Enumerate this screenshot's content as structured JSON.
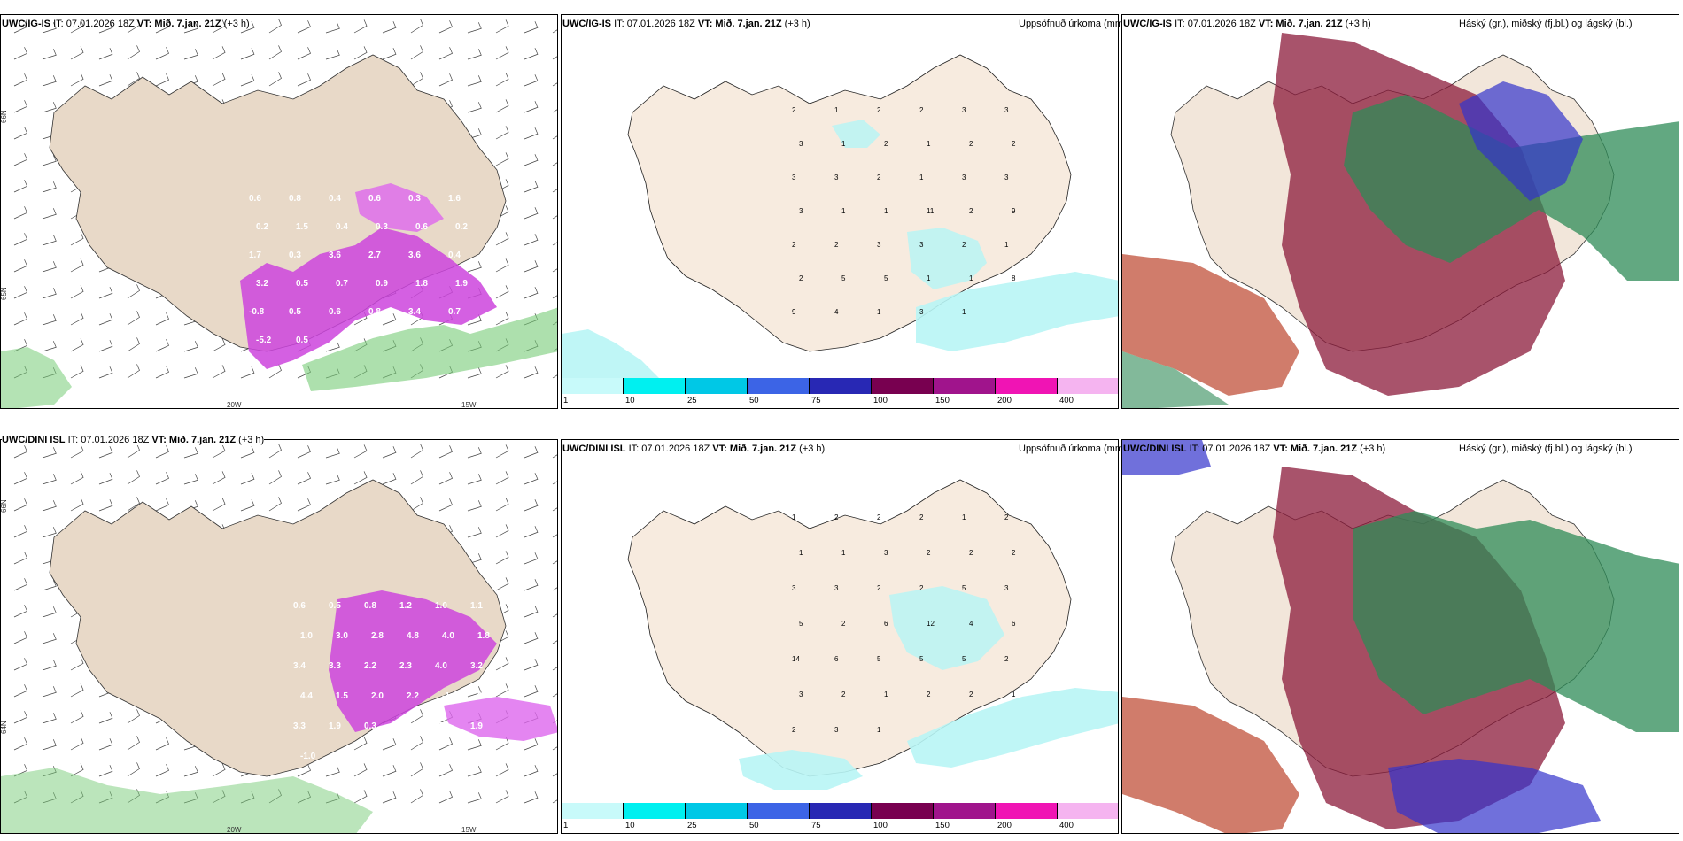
{
  "colors": {
    "land": "#f5e6da",
    "sea": "#ffffff",
    "precip_light": "#b8f5f5",
    "precip_cyan": "#00e5e5",
    "precip_magenta": "#cc33cc",
    "cloud_high": "#8b1a3a",
    "cloud_mid": "#2e8b57",
    "cloud_low": "#3333cc"
  },
  "rows": [
    {
      "model": "UWC/IG-IS",
      "it_label": "IT: 07.01.2026 18Z",
      "vt_label": "VT: Mið. 7.jan. 21Z",
      "lead": "(+3 h)",
      "wind_labels": {
        "lon1": "20W",
        "lon2": "15W",
        "lat1": "66N",
        "lat2": "65N",
        "lat3": "64N"
      },
      "wind_numbers": [
        "0.6",
        "0.8",
        "0.4",
        "0.6",
        "0.3",
        "1.6",
        "0.2",
        "1.5",
        "0.4",
        "0.3",
        "0.6",
        "0.2",
        "1.7",
        "0.3",
        "3.6",
        "2.7",
        "3.6",
        "0.4",
        "3.2",
        "0.5",
        "0.7",
        "0.9",
        "1.8",
        "1.9",
        "-0.8",
        "0.5",
        "0.6",
        "0.8",
        "3.4",
        "0.7",
        "-5.2",
        "0.5",
        "0.9"
      ],
      "precip_title": "Uppsöfnuð úrkoma (mm)",
      "precip_numbers": [
        "2",
        "1",
        "2",
        "2",
        "3",
        "3",
        "3",
        "1",
        "2",
        "1",
        "2",
        "2",
        "3",
        "3",
        "2",
        "1",
        "3",
        "3",
        "3",
        "1",
        "1",
        "11",
        "2",
        "9",
        "2",
        "2",
        "3",
        "3",
        "2",
        "1",
        "2",
        "5",
        "5",
        "1",
        "1",
        "8",
        "9",
        "4",
        "1",
        "3",
        "1"
      ],
      "cloud_title": "Háský (gr.), miðský (fj.bl.) og lágský (bl.)"
    },
    {
      "model": "UWC/DINI ISL",
      "it_label": "IT: 07.01.2026 18Z",
      "vt_label": "VT: Mið. 7.jan. 21Z",
      "lead": "(+3 h)",
      "wind_labels": {
        "lon1": "20W",
        "lon2": "15W",
        "lat1": "66N",
        "lat2": "65N",
        "lat3": "64N"
      },
      "wind_numbers": [
        "0.6",
        "0.5",
        "0.8",
        "1.2",
        "1.0",
        "1.1",
        "1.0",
        "3.0",
        "2.8",
        "4.8",
        "4.0",
        "1.8",
        "3.4",
        "3.3",
        "2.2",
        "2.3",
        "4.0",
        "3.2",
        "4.4",
        "1.5",
        "2.0",
        "2.2",
        "-1.3",
        "2.9",
        "3.3",
        "1.9",
        "0.3",
        "1.2",
        "-5.1",
        "1.9",
        "-1.0",
        "0.8"
      ],
      "precip_title": "Uppsöfnuð úrkoma (mm)",
      "precip_numbers": [
        "1",
        "2",
        "2",
        "2",
        "1",
        "2",
        "1",
        "1",
        "3",
        "2",
        "2",
        "2",
        "3",
        "3",
        "2",
        "2",
        "5",
        "3",
        "5",
        "2",
        "6",
        "12",
        "4",
        "6",
        "14",
        "6",
        "5",
        "5",
        "5",
        "2",
        "3",
        "2",
        "1",
        "2",
        "2",
        "1",
        "2",
        "3",
        "1"
      ],
      "cloud_title": "Háský (gr.), miðský (fj.bl.) og lágský (bl.)"
    }
  ],
  "colorbar": {
    "ticks": [
      "1",
      "10",
      "25",
      "50",
      "75",
      "100",
      "150",
      "200",
      "400"
    ],
    "colors": [
      "#c8fafa",
      "#00f0f0",
      "#00c8e6",
      "#3c64e6",
      "#2828b4",
      "#780050",
      "#a0148c",
      "#f014b4",
      "#f5b4f0"
    ]
  }
}
